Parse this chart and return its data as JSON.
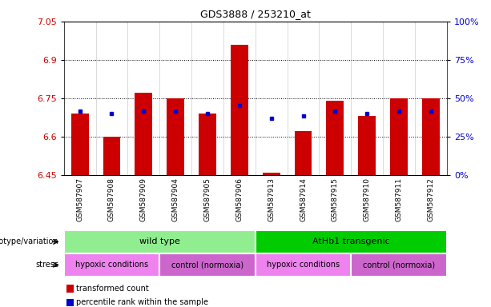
{
  "title": "GDS3888 / 253210_at",
  "samples": [
    "GSM587907",
    "GSM587908",
    "GSM587909",
    "GSM587904",
    "GSM587905",
    "GSM587906",
    "GSM587913",
    "GSM587914",
    "GSM587915",
    "GSM587910",
    "GSM587911",
    "GSM587912"
  ],
  "bar_values": [
    6.69,
    6.6,
    6.77,
    6.75,
    6.69,
    6.96,
    6.46,
    6.62,
    6.74,
    6.68,
    6.75,
    6.75
  ],
  "blue_values": [
    6.7,
    6.69,
    6.7,
    6.7,
    6.69,
    6.72,
    6.67,
    6.68,
    6.7,
    6.69,
    6.7,
    6.7
  ],
  "ymin": 6.45,
  "ymax": 7.05,
  "yticks_left": [
    6.45,
    6.6,
    6.75,
    6.9,
    7.05
  ],
  "yticks_right": [
    0,
    25,
    50,
    75,
    100
  ],
  "yticks_right_vals": [
    6.45,
    6.6,
    6.75,
    6.9,
    7.05
  ],
  "hlines": [
    6.6,
    6.75,
    6.9
  ],
  "bar_color": "#cc0000",
  "blue_color": "#0000cc",
  "bar_bottom": 6.45,
  "genotype_groups": [
    {
      "label": "wild type",
      "start": 0,
      "end": 6,
      "color": "#90ee90"
    },
    {
      "label": "AtHb1 transgenic",
      "start": 6,
      "end": 12,
      "color": "#00cc00"
    }
  ],
  "stress_groups": [
    {
      "label": "hypoxic conditions",
      "start": 0,
      "end": 3,
      "color": "#ee82ee"
    },
    {
      "label": "control (normoxia)",
      "start": 3,
      "end": 6,
      "color": "#cc66cc"
    },
    {
      "label": "hypoxic conditions",
      "start": 6,
      "end": 9,
      "color": "#ee82ee"
    },
    {
      "label": "control (normoxia)",
      "start": 9,
      "end": 12,
      "color": "#cc66cc"
    }
  ],
  "legend_items": [
    {
      "label": "transformed count",
      "color": "#cc0000"
    },
    {
      "label": "percentile rank within the sample",
      "color": "#0000cc"
    }
  ],
  "left_label_color": "#cc0000",
  "right_label_color": "#0000cc",
  "genotype_label": "genotype/variation",
  "stress_label": "stress",
  "bar_width": 0.55,
  "figsize": [
    6.13,
    3.84
  ],
  "dpi": 100
}
